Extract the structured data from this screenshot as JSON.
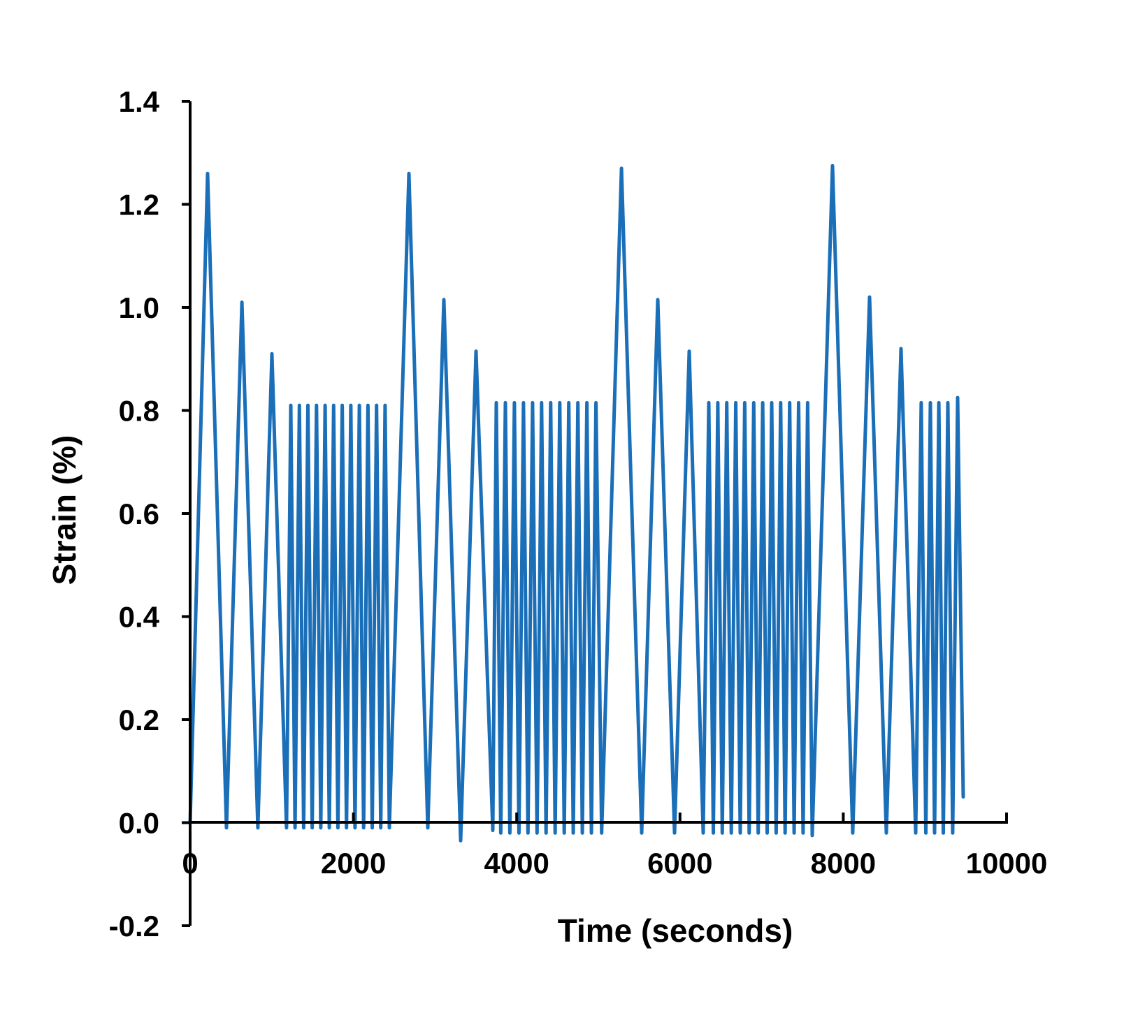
{
  "chart_data": {
    "type": "line",
    "title": "",
    "xlabel": "Time (seconds)",
    "ylabel": "Strain (%)",
    "xlim": [
      0,
      10000
    ],
    "ylim": [
      -0.2,
      1.4
    ],
    "xticks": [
      0,
      2000,
      4000,
      6000,
      8000,
      10000
    ],
    "xtick_labels": [
      "0",
      "2000",
      "4000",
      "6000",
      "8000",
      "10000"
    ],
    "yticks": [
      -0.2,
      0,
      0.2,
      0.4,
      0.6,
      0.8,
      1.0,
      1.2,
      1.4
    ],
    "ytick_labels": [
      "-0.2",
      "0.0",
      "0.2",
      "0.4",
      "0.6",
      "0.8",
      "1.0",
      "1.2",
      "1.4"
    ],
    "grid": false,
    "series": [
      {
        "name": "Strain",
        "color": "#1a6fb8",
        "points": [
          [
            0,
            0
          ],
          [
            214,
            1.26
          ],
          [
            445,
            -0.01
          ],
          [
            634,
            1.01
          ],
          [
            830,
            -0.01
          ],
          [
            1002,
            0.91
          ],
          [
            1181,
            -0.01
          ],
          [
            1233,
            0.81
          ],
          [
            1285,
            -0.01
          ],
          [
            1338,
            0.81
          ],
          [
            1390,
            -0.01
          ],
          [
            1443,
            0.81
          ],
          [
            1495,
            -0.01
          ],
          [
            1548,
            0.81
          ],
          [
            1600,
            -0.01
          ],
          [
            1653,
            0.81
          ],
          [
            1705,
            -0.01
          ],
          [
            1758,
            0.81
          ],
          [
            1810,
            -0.01
          ],
          [
            1863,
            0.81
          ],
          [
            1915,
            -0.01
          ],
          [
            1968,
            0.81
          ],
          [
            2020,
            -0.01
          ],
          [
            2073,
            0.81
          ],
          [
            2125,
            -0.01
          ],
          [
            2178,
            0.81
          ],
          [
            2230,
            -0.01
          ],
          [
            2283,
            0.81
          ],
          [
            2335,
            -0.01
          ],
          [
            2388,
            0.81
          ],
          [
            2440,
            -0.01
          ],
          [
            2680,
            1.26
          ],
          [
            2911,
            -0.01
          ],
          [
            3108,
            1.015
          ],
          [
            3313,
            -0.035
          ],
          [
            3502,
            0.915
          ],
          [
            3707,
            -0.015
          ],
          [
            3750,
            0.815
          ],
          [
            3805,
            -0.02
          ],
          [
            3861,
            0.815
          ],
          [
            3916,
            -0.02
          ],
          [
            3972,
            0.815
          ],
          [
            4027,
            -0.02
          ],
          [
            4083,
            0.815
          ],
          [
            4138,
            -0.02
          ],
          [
            4194,
            0.815
          ],
          [
            4249,
            -0.02
          ],
          [
            4305,
            0.815
          ],
          [
            4360,
            -0.02
          ],
          [
            4416,
            0.815
          ],
          [
            4471,
            -0.02
          ],
          [
            4527,
            0.815
          ],
          [
            4582,
            -0.02
          ],
          [
            4638,
            0.815
          ],
          [
            4693,
            -0.02
          ],
          [
            4749,
            0.815
          ],
          [
            4804,
            -0.02
          ],
          [
            4860,
            0.815
          ],
          [
            4915,
            -0.02
          ],
          [
            4971,
            0.815
          ],
          [
            5040,
            -0.02
          ],
          [
            5283,
            1.27
          ],
          [
            5531,
            -0.02
          ],
          [
            5728,
            1.015
          ],
          [
            5933,
            -0.02
          ],
          [
            6113,
            0.915
          ],
          [
            6284,
            -0.02
          ],
          [
            6353,
            0.815
          ],
          [
            6408,
            -0.02
          ],
          [
            6463,
            0.815
          ],
          [
            6518,
            -0.02
          ],
          [
            6573,
            0.815
          ],
          [
            6628,
            -0.02
          ],
          [
            6683,
            0.815
          ],
          [
            6738,
            -0.02
          ],
          [
            6793,
            0.815
          ],
          [
            6848,
            -0.02
          ],
          [
            6903,
            0.815
          ],
          [
            6958,
            -0.02
          ],
          [
            7013,
            0.815
          ],
          [
            7068,
            -0.02
          ],
          [
            7123,
            0.815
          ],
          [
            7178,
            -0.02
          ],
          [
            7233,
            0.815
          ],
          [
            7288,
            -0.02
          ],
          [
            7343,
            0.815
          ],
          [
            7398,
            -0.02
          ],
          [
            7453,
            0.815
          ],
          [
            7508,
            -0.02
          ],
          [
            7563,
            0.815
          ],
          [
            7620,
            -0.025
          ],
          [
            7868,
            1.275
          ],
          [
            8116,
            -0.02
          ],
          [
            8322,
            1.02
          ],
          [
            8527,
            -0.02
          ],
          [
            8707,
            0.92
          ],
          [
            8887,
            -0.02
          ],
          [
            8955,
            0.815
          ],
          [
            9011,
            -0.02
          ],
          [
            9067,
            0.815
          ],
          [
            9118,
            -0.02
          ],
          [
            9170,
            0.815
          ],
          [
            9225,
            -0.02
          ],
          [
            9281,
            0.815
          ],
          [
            9340,
            -0.02
          ],
          [
            9401,
            0.825
          ],
          [
            9469,
            0.05
          ]
        ]
      }
    ]
  }
}
